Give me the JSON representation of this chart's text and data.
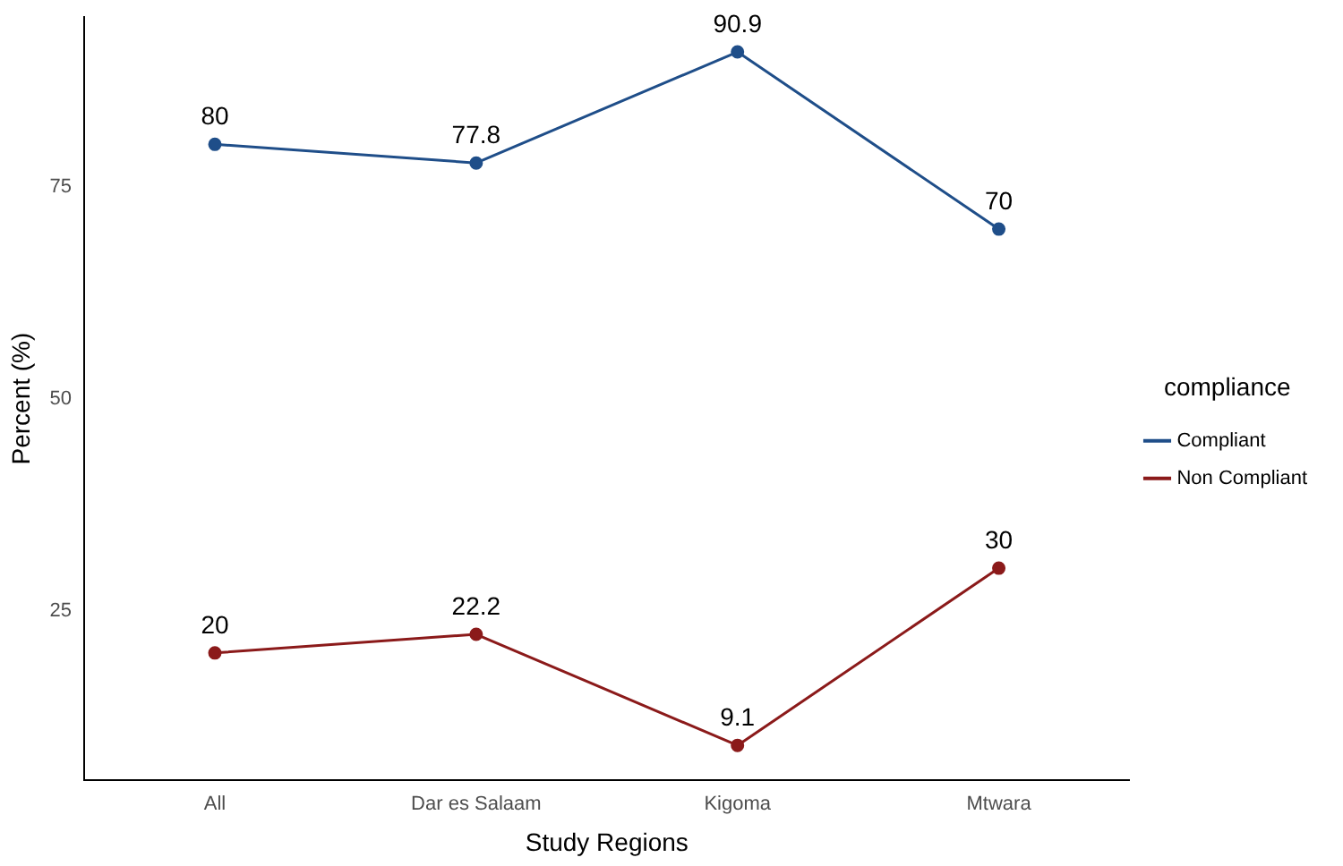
{
  "chart_data": {
    "type": "line",
    "xlabel": "Study Regions",
    "ylabel": "Percent (%)",
    "legend_title": "compliance",
    "categories": [
      "All",
      "Dar es Salaam",
      "Kigoma",
      "Mtwara"
    ],
    "series": [
      {
        "name": "Compliant",
        "color": "#1f4e89",
        "values": [
          80,
          77.8,
          90.9,
          70
        ]
      },
      {
        "name": "Non Compliant",
        "color": "#8b1a1a",
        "values": [
          20,
          22.2,
          9.1,
          30
        ]
      }
    ],
    "ylim": [
      5,
      95
    ],
    "yticks": [
      25,
      50,
      75
    ],
    "grid": false,
    "legend": "right",
    "marker": "circle",
    "line_style": "solid",
    "data_labels": true
  }
}
